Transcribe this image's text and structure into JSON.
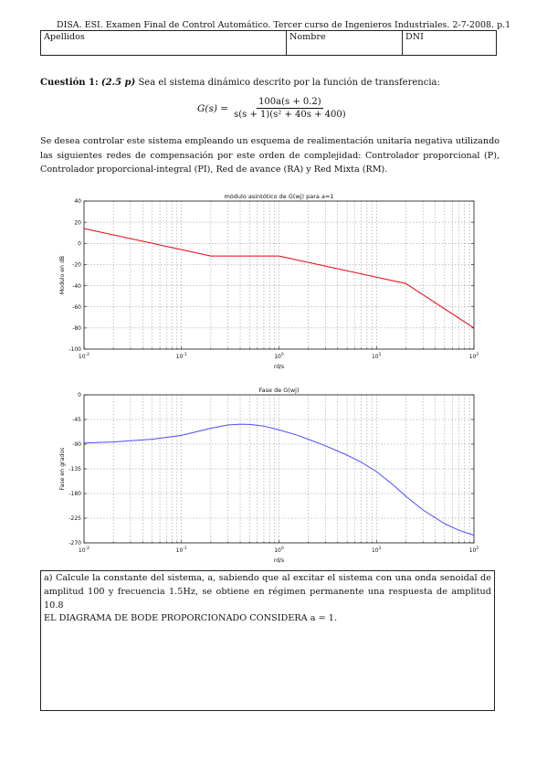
{
  "header": "DISA. ESI. Examen Final de Control Automático. Tercer curso de Ingenieros Industriales. 2-7-2008. p.1",
  "id_table": {
    "apellidos": "Apellidos",
    "nombre": "Nombre",
    "dni": "DNI"
  },
  "question": {
    "label": "Cuestión 1:",
    "points": "(2.5 p)",
    "intro": "Sea el sistema dinámico descrito por la función de transferencia:",
    "tf_lhs": "G(s) =",
    "tf_num": "100a(s + 0.2)",
    "tf_den": "s(s + 1)(s² + 40s + 400)",
    "paragraph": "Se desea controlar este sistema empleando un esquema de realimentación unitaria negativa utilizando las siguientes redes de compensación por este orden de complejidad: Controlador proporcional (P), Controlador proporcional-integral (PI), Red de avance (RA) y Red Mixta (RM)."
  },
  "chart_data": [
    {
      "type": "line",
      "title": "módulo asintótico de G(wj) para a=1",
      "xlabel": "rd/s",
      "ylabel": "Modulo en dB",
      "xscale": "log",
      "xlim": [
        0.01,
        100
      ],
      "ylim": [
        -100,
        40
      ],
      "yticks": [
        -100,
        -80,
        -60,
        -40,
        -20,
        0,
        20,
        40
      ],
      "xtick_labels": [
        "10-2",
        "10-1",
        "100",
        "101",
        "102"
      ],
      "grid": true,
      "series": [
        {
          "color": "#e8000b",
          "x": [
            0.01,
            0.2,
            1,
            20,
            100
          ],
          "y": [
            14,
            -12,
            -12,
            -38,
            -80
          ]
        }
      ]
    },
    {
      "type": "line",
      "title": "Fase de G(wj)",
      "xlabel": "rd/s",
      "ylabel": "Fase en grados",
      "xscale": "log",
      "xlim": [
        0.01,
        100
      ],
      "ylim": [
        -270,
        0
      ],
      "yticks": [
        -270,
        -225,
        -180,
        -135,
        -90,
        -45,
        0
      ],
      "xtick_labels": [
        "10-2",
        "10-1",
        "100",
        "101",
        "102"
      ],
      "grid": true,
      "series": [
        {
          "color": "#4b4bff",
          "x": [
            0.01,
            0.02,
            0.05,
            0.1,
            0.2,
            0.3,
            0.4,
            0.5,
            0.7,
            1,
            1.5,
            2,
            3,
            5,
            7,
            10,
            15,
            20,
            30,
            50,
            70,
            100
          ],
          "y": [
            -88,
            -86,
            -81,
            -74,
            -61,
            -55,
            -53.5,
            -54,
            -57,
            -64,
            -73,
            -81,
            -93,
            -110,
            -123,
            -140,
            -165,
            -185,
            -210,
            -235,
            -247,
            -256
          ]
        }
      ]
    }
  ],
  "answer": {
    "text_a": "a) Calcule la constante del sistema, a, sabiendo que al excitar el sistema con una onda senoidal de amplitud 100 y frecuencia 1.5Hz, se obtiene en régimen permanente una respuesta de amplitud 10.8",
    "text_b": "EL DIAGRAMA DE BODE PROPORCIONADO CONSIDERA a = 1."
  }
}
